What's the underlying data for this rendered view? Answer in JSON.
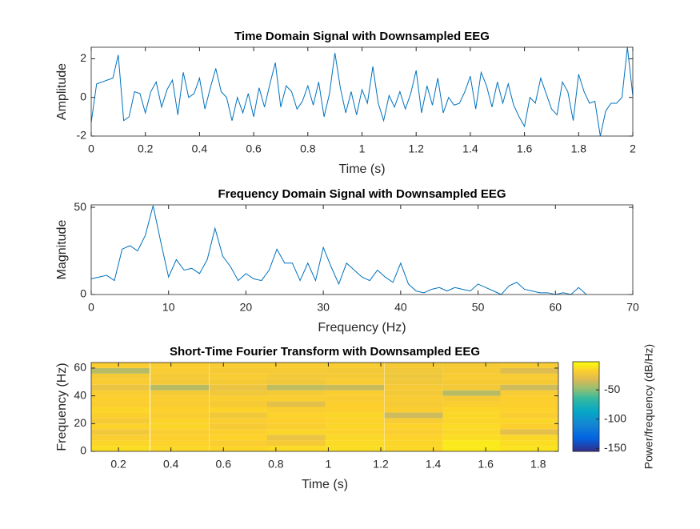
{
  "chart_data": [
    {
      "type": "line",
      "title": "Time Domain Signal with Downsampled EEG",
      "xlabel": "Time (s)",
      "ylabel": "Amplitude",
      "color": "#0072bd",
      "x": [
        0,
        0.02,
        0.04,
        0.06,
        0.08,
        0.1,
        0.12,
        0.14,
        0.16,
        0.18,
        0.2,
        0.22,
        0.24,
        0.26,
        0.28,
        0.3,
        0.32,
        0.34,
        0.36,
        0.38,
        0.4,
        0.42,
        0.44,
        0.46,
        0.48,
        0.5,
        0.52,
        0.54,
        0.56,
        0.58,
        0.6,
        0.62,
        0.64,
        0.66,
        0.68,
        0.7,
        0.72,
        0.74,
        0.76,
        0.78,
        0.8,
        0.82,
        0.84,
        0.86,
        0.88,
        0.9,
        0.92,
        0.94,
        0.96,
        0.98,
        1,
        1.02,
        1.04,
        1.06,
        1.08,
        1.1,
        1.12,
        1.14,
        1.16,
        1.18,
        1.2,
        1.22,
        1.24,
        1.26,
        1.28,
        1.3,
        1.32,
        1.34,
        1.36,
        1.38,
        1.4,
        1.42,
        1.44,
        1.46,
        1.48,
        1.5,
        1.52,
        1.54,
        1.56,
        1.58,
        1.6,
        1.62,
        1.64,
        1.66,
        1.68,
        1.7,
        1.72,
        1.74,
        1.76,
        1.78,
        1.8,
        1.82,
        1.84,
        1.86,
        1.88,
        1.9,
        1.92,
        1.94,
        1.96,
        1.98,
        2
      ],
      "values": [
        -1.3,
        0.7,
        0.8,
        0.9,
        1.0,
        2.2,
        -1.2,
        -1.0,
        0.3,
        0.2,
        -0.8,
        0.3,
        0.8,
        -0.5,
        0.4,
        0.9,
        -0.9,
        1.3,
        0.0,
        0.2,
        1.0,
        -0.6,
        0.5,
        1.5,
        0.3,
        0.0,
        -1.2,
        0.0,
        -0.8,
        0.2,
        -1.0,
        0.5,
        -0.5,
        0.7,
        1.8,
        -0.5,
        0.6,
        0.3,
        -0.6,
        -0.2,
        0.6,
        -0.4,
        0.8,
        -1.0,
        0.2,
        2.3,
        0.5,
        -0.8,
        0.3,
        -0.9,
        0.4,
        -0.3,
        1.6,
        -0.3,
        -1.2,
        0.1,
        -0.5,
        0.3,
        -0.6,
        0.2,
        1.4,
        -0.8,
        0.6,
        -0.4,
        1.0,
        -0.8,
        0.0,
        -0.4,
        -0.3,
        0.3,
        1.1,
        -0.6,
        1.3,
        0.6,
        -0.5,
        0.8,
        -0.3,
        0.7,
        -0.4,
        -1.0,
        -1.5,
        0.0,
        -0.3,
        1.0,
        0.2,
        -0.6,
        -0.9,
        0.8,
        0.3,
        -1.2,
        1.2,
        0.3,
        -0.3,
        -0.2,
        -2.0,
        -0.7,
        -0.3,
        -0.3,
        0.0,
        2.6,
        0.1
      ],
      "xlim": [
        0,
        2
      ],
      "ylim": [
        -2,
        2.6
      ],
      "xticks": [
        0,
        0.2,
        0.4,
        0.6,
        0.8,
        1,
        1.2,
        1.4,
        1.6,
        1.8,
        2
      ],
      "yticks": [
        -2,
        0,
        2
      ]
    },
    {
      "type": "line",
      "title": "Frequency Domain Signal with Downsampled EEG",
      "xlabel": "Frequency (Hz)",
      "ylabel": "Magnitude",
      "color": "#0072bd",
      "x": [
        0,
        1,
        2,
        3,
        4,
        5,
        6,
        7,
        8,
        9,
        10,
        11,
        12,
        13,
        14,
        15,
        16,
        17,
        18,
        19,
        20,
        21,
        22,
        23,
        24,
        25,
        26,
        27,
        28,
        29,
        30,
        31,
        32,
        33,
        34,
        35,
        36,
        37,
        38,
        39,
        40,
        41,
        42,
        43,
        44,
        45,
        46,
        47,
        48,
        49,
        50,
        51,
        52,
        53,
        54,
        55,
        56,
        57,
        58,
        59,
        60,
        61,
        62,
        63,
        64
      ],
      "values": [
        9,
        10,
        11,
        8,
        26,
        28,
        25,
        34,
        51,
        30,
        10,
        20,
        14,
        15,
        12,
        20,
        38,
        22,
        16,
        8,
        12,
        9,
        8,
        14,
        26,
        18,
        18,
        8,
        18,
        8,
        27,
        16,
        6,
        18,
        14,
        10,
        8,
        14,
        10,
        7,
        18,
        6,
        2,
        1,
        3,
        4,
        2,
        4,
        3,
        2,
        6,
        4,
        2,
        0,
        5,
        7,
        3,
        2,
        1,
        1,
        0,
        1,
        0,
        4,
        0
      ],
      "xlim": [
        0,
        70
      ],
      "ylim": [
        0,
        51.4
      ],
      "xticks": [
        0,
        10,
        20,
        30,
        40,
        50,
        60,
        70
      ],
      "yticks": [
        0,
        50
      ]
    },
    {
      "type": "heatmap",
      "title": "Short-Time Fourier Transform with Downsampled EEG",
      "xlabel": "Time (s)",
      "ylabel": "Frequency (Hz)",
      "colormap": "parula",
      "x": [
        0.2075,
        0.433,
        0.657,
        0.878,
        1.101,
        1.325,
        1.548,
        1.767
      ],
      "y": [
        2,
        6,
        10,
        14,
        18,
        22,
        26,
        30,
        34,
        38,
        42,
        46,
        50,
        54,
        58,
        62
      ],
      "z": [
        [
          -12,
          -14,
          -15,
          -13,
          -12,
          -14,
          -8,
          -10
        ],
        [
          -15,
          -16,
          -18,
          -20,
          -13,
          -15,
          -8,
          -12
        ],
        [
          -18,
          -17,
          -16,
          -25,
          -14,
          -16,
          -12,
          -14
        ],
        [
          -22,
          -18,
          -17,
          -15,
          -16,
          -18,
          -14,
          -28
        ],
        [
          -16,
          -15,
          -20,
          -18,
          -15,
          -16,
          -13,
          -17
        ],
        [
          -20,
          -16,
          -18,
          -17,
          -16,
          -19,
          -15,
          -15
        ],
        [
          -17,
          -18,
          -22,
          -16,
          -15,
          -35,
          -14,
          -18
        ],
        [
          -15,
          -17,
          -16,
          -18,
          -17,
          -18,
          -15,
          -16
        ],
        [
          -18,
          -19,
          -20,
          -28,
          -17,
          -20,
          -18,
          -17
        ],
        [
          -17,
          -18,
          -18,
          -18,
          -19,
          -19,
          -20,
          -17
        ],
        [
          -18,
          -20,
          -22,
          -20,
          -18,
          -21,
          -40,
          -19
        ],
        [
          -25,
          -40,
          -25,
          -38,
          -36,
          -20,
          -21,
          -35
        ],
        [
          -19,
          -21,
          -20,
          -22,
          -19,
          -22,
          -20,
          -20
        ],
        [
          -20,
          -20,
          -19,
          -21,
          -20,
          -23,
          -19,
          -19
        ],
        [
          -40,
          -19,
          -20,
          -20,
          -21,
          -22,
          -20,
          -30
        ],
        [
          -18,
          -18,
          -19,
          -19,
          -19,
          -20,
          -20,
          -19
        ]
      ],
      "xlim": [
        0.096,
        1.877
      ],
      "ylim": [
        0,
        64
      ],
      "xticks": [
        0.2,
        0.4,
        0.6,
        0.8,
        1,
        1.2,
        1.4,
        1.6,
        1.8
      ],
      "yticks": [
        0,
        20,
        40,
        60
      ],
      "clim": [
        -155,
        -2
      ],
      "cticks": [
        -150,
        -100,
        -50
      ],
      "colorbar_label": "Power/frequency (dB/Hz)"
    }
  ]
}
